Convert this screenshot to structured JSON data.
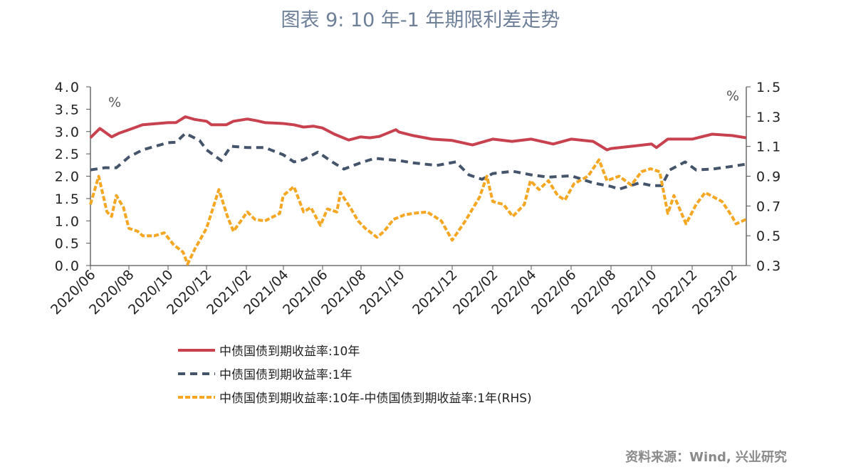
{
  "chart_data": {
    "type": "line",
    "title": "图表 9: 10 年-1 年期限利差走势",
    "x_unit": "months since 2020/06",
    "x_tick_labels": [
      "2020/06",
      "2020/08",
      "2020/10",
      "2020/12",
      "2021/02",
      "2021/04",
      "2021/06",
      "2021/08",
      "2021/10",
      "2021/12",
      "2022/02",
      "2022/04",
      "2022/06",
      "2022/08",
      "2022/10",
      "2022/12",
      "2023/02"
    ],
    "left_axis": {
      "label": "%",
      "ylim": [
        0,
        4
      ],
      "ticks": [
        "0.0",
        "0.5",
        "1.0",
        "1.5",
        "2.0",
        "2.5",
        "3.0",
        "3.5",
        "4.0"
      ]
    },
    "right_axis": {
      "label": "%",
      "ylim": [
        0.3,
        1.5
      ],
      "ticks": [
        "0.3",
        "0.5",
        "0.7",
        "0.9",
        "1.1",
        "1.3",
        "1.5"
      ]
    },
    "series": [
      {
        "name": "中债国债到期收益率:10年",
        "axis": "left",
        "color": "#C8414F",
        "style": "solid",
        "points": [
          [
            0,
            2.86
          ],
          [
            0.49,
            3.07
          ],
          [
            1.1,
            2.88
          ],
          [
            1.47,
            2.96
          ],
          [
            2.0,
            3.04
          ],
          [
            2.7,
            3.15
          ],
          [
            4.0,
            3.2
          ],
          [
            4.41,
            3.2
          ],
          [
            4.9,
            3.33
          ],
          [
            5.39,
            3.27
          ],
          [
            6.0,
            3.23
          ],
          [
            6.25,
            3.15
          ],
          [
            6.99,
            3.15
          ],
          [
            7.35,
            3.23
          ],
          [
            8.05,
            3.28
          ],
          [
            8.58,
            3.24
          ],
          [
            9.0,
            3.2
          ],
          [
            9.99,
            3.18
          ],
          [
            10.54,
            3.15
          ],
          [
            11.03,
            3.1
          ],
          [
            11.52,
            3.12
          ],
          [
            11.99,
            3.08
          ],
          [
            12.62,
            2.94
          ],
          [
            13.36,
            2.81
          ],
          [
            13.97,
            2.88
          ],
          [
            14.46,
            2.86
          ],
          [
            14.95,
            2.89
          ],
          [
            15.81,
            3.04
          ],
          [
            15.97,
            2.99
          ],
          [
            16.51,
            2.91
          ],
          [
            17.23,
            2.83
          ],
          [
            18.0,
            2.8
          ],
          [
            19.0,
            2.7
          ],
          [
            20.0,
            2.83
          ],
          [
            21.0,
            2.78
          ],
          [
            22.0,
            2.83
          ],
          [
            23.1,
            2.72
          ],
          [
            24.0,
            2.83
          ],
          [
            25.1,
            2.78
          ],
          [
            25.8,
            2.59
          ],
          [
            26.0,
            2.62
          ],
          [
            27.0,
            2.67
          ],
          [
            28.0,
            2.72
          ],
          [
            28.24,
            2.64
          ],
          [
            28.8,
            2.83
          ],
          [
            30.0,
            2.83
          ],
          [
            31.0,
            2.94
          ],
          [
            32.0,
            2.91
          ],
          [
            32.7,
            2.86
          ]
        ]
      },
      {
        "name": "中债国债到期收益率:1年",
        "axis": "left",
        "color": "#44546A",
        "style": "dash",
        "points": [
          [
            0,
            2.14
          ],
          [
            0.74,
            2.19
          ],
          [
            1.35,
            2.19
          ],
          [
            2.0,
            2.43
          ],
          [
            2.7,
            2.59
          ],
          [
            4.0,
            2.75
          ],
          [
            4.41,
            2.76
          ],
          [
            4.9,
            2.96
          ],
          [
            5.64,
            2.8
          ],
          [
            6.0,
            2.59
          ],
          [
            6.74,
            2.35
          ],
          [
            7.23,
            2.67
          ],
          [
            8.05,
            2.64
          ],
          [
            9.0,
            2.64
          ],
          [
            9.99,
            2.48
          ],
          [
            10.54,
            2.32
          ],
          [
            11.03,
            2.37
          ],
          [
            11.76,
            2.54
          ],
          [
            12.5,
            2.32
          ],
          [
            13.11,
            2.16
          ],
          [
            13.97,
            2.3
          ],
          [
            14.71,
            2.4
          ],
          [
            15.97,
            2.35
          ],
          [
            16.51,
            2.3
          ],
          [
            17.41,
            2.24
          ],
          [
            18.18,
            2.32
          ],
          [
            18.82,
            2.03
          ],
          [
            19.47,
            1.93
          ],
          [
            20.0,
            2.06
          ],
          [
            21.04,
            2.11
          ],
          [
            22.0,
            2.03
          ],
          [
            22.86,
            1.98
          ],
          [
            24.0,
            2.01
          ],
          [
            25.1,
            1.85
          ],
          [
            26.0,
            1.77
          ],
          [
            26.4,
            1.71
          ],
          [
            27.4,
            1.85
          ],
          [
            28.0,
            1.79
          ],
          [
            28.5,
            1.79
          ],
          [
            28.9,
            2.14
          ],
          [
            29.65,
            2.32
          ],
          [
            30.2,
            2.14
          ],
          [
            31.0,
            2.16
          ],
          [
            32.0,
            2.22
          ],
          [
            32.7,
            2.27
          ]
        ]
      },
      {
        "name": "中债国债到期收益率:10年-中债国债到期收益率:1年(RHS)",
        "axis": "right",
        "color": "#F5A623",
        "style": "dot-dash",
        "points": [
          [
            0,
            0.71
          ],
          [
            0.43,
            0.9
          ],
          [
            0.86,
            0.66
          ],
          [
            1.1,
            0.63
          ],
          [
            1.35,
            0.77
          ],
          [
            1.72,
            0.69
          ],
          [
            2.0,
            0.55
          ],
          [
            2.45,
            0.53
          ],
          [
            2.7,
            0.5
          ],
          [
            3.31,
            0.5
          ],
          [
            3.8,
            0.52
          ],
          [
            4.29,
            0.44
          ],
          [
            4.78,
            0.39
          ],
          [
            5.02,
            0.31
          ],
          [
            5.39,
            0.41
          ],
          [
            6.0,
            0.55
          ],
          [
            6.62,
            0.81
          ],
          [
            7.05,
            0.63
          ],
          [
            7.35,
            0.53
          ],
          [
            8.05,
            0.66
          ],
          [
            8.46,
            0.61
          ],
          [
            9.0,
            0.6
          ],
          [
            9.8,
            0.65
          ],
          [
            9.99,
            0.77
          ],
          [
            10.54,
            0.83
          ],
          [
            11.03,
            0.66
          ],
          [
            11.4,
            0.69
          ],
          [
            11.89,
            0.57
          ],
          [
            12.25,
            0.68
          ],
          [
            12.74,
            0.66
          ],
          [
            12.93,
            0.79
          ],
          [
            13.48,
            0.68
          ],
          [
            13.85,
            0.6
          ],
          [
            14.22,
            0.55
          ],
          [
            14.83,
            0.49
          ],
          [
            15.2,
            0.53
          ],
          [
            15.69,
            0.61
          ],
          [
            16.18,
            0.64
          ],
          [
            16.51,
            0.65
          ],
          [
            17.05,
            0.66
          ],
          [
            17.59,
            0.6
          ],
          [
            18.0,
            0.47
          ],
          [
            18.65,
            0.6
          ],
          [
            19.35,
            0.76
          ],
          [
            19.71,
            0.9
          ],
          [
            20.0,
            0.73
          ],
          [
            20.56,
            0.71
          ],
          [
            21.04,
            0.63
          ],
          [
            21.64,
            0.71
          ],
          [
            21.96,
            0.87
          ],
          [
            22.39,
            0.81
          ],
          [
            22.86,
            0.87
          ],
          [
            23.33,
            0.77
          ],
          [
            23.69,
            0.74
          ],
          [
            24.15,
            0.85
          ],
          [
            24.85,
            0.9
          ],
          [
            25.4,
            1.01
          ],
          [
            25.8,
            0.87
          ],
          [
            26.4,
            0.9
          ],
          [
            27.0,
            0.84
          ],
          [
            27.5,
            0.93
          ],
          [
            27.95,
            0.95
          ],
          [
            28.4,
            0.93
          ],
          [
            28.8,
            0.65
          ],
          [
            29.1,
            0.77
          ],
          [
            29.7,
            0.58
          ],
          [
            30.2,
            0.71
          ],
          [
            30.65,
            0.79
          ],
          [
            31.5,
            0.73
          ],
          [
            32.0,
            0.63
          ],
          [
            32.2,
            0.58
          ],
          [
            32.7,
            0.61
          ]
        ]
      }
    ]
  },
  "source": "资料来源：Wind, 兴业研究"
}
